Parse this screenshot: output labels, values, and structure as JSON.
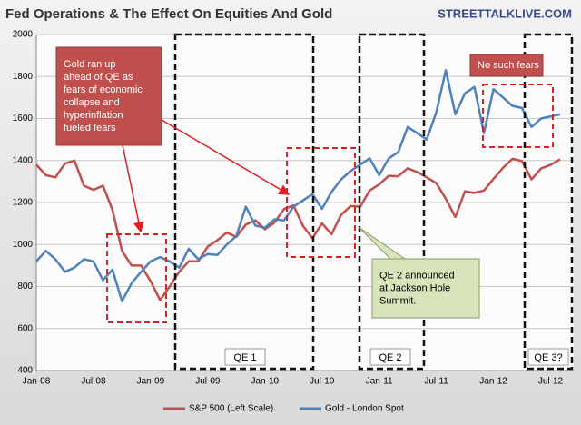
{
  "chart_data": {
    "type": "line",
    "title": "Fed Operations & The Effect On Equities And Gold",
    "source": "STREETTALKLIVE.COM",
    "categories": [
      "Jan-08",
      null,
      null,
      null,
      null,
      null,
      "Jul-08",
      null,
      null,
      null,
      null,
      null,
      "Jan-09",
      null,
      null,
      null,
      null,
      null,
      "Jul-09",
      null,
      null,
      null,
      null,
      null,
      "Jan-10",
      null,
      null,
      null,
      null,
      null,
      "Jul-10",
      null,
      null,
      null,
      null,
      null,
      "Jan-11",
      null,
      null,
      null,
      null,
      null,
      "Jul-11",
      null,
      null,
      null,
      null,
      null,
      "Jan-12",
      null,
      null,
      null,
      null,
      null,
      "Jul-12",
      null
    ],
    "series": [
      {
        "name": "S&P 500 (Left Scale)",
        "color": "#c0504d",
        "values": [
          1380,
          1330,
          1320,
          1385,
          1400,
          1280,
          1260,
          1280,
          1165,
          970,
          900,
          900,
          825,
          735,
          800,
          870,
          920,
          920,
          990,
          1020,
          1057,
          1036,
          1095,
          1115,
          1073,
          1104,
          1169,
          1186,
          1089,
          1030,
          1101,
          1049,
          1141,
          1183,
          1180,
          1257,
          1286,
          1327,
          1325,
          1363,
          1345,
          1320,
          1292,
          1218,
          1131,
          1253,
          1246,
          1257,
          1312,
          1365,
          1408,
          1397,
          1310,
          1362,
          1379,
          1406
        ]
      },
      {
        "name": "Gold - London Spot",
        "color": "#4f81bd",
        "values": [
          920,
          970,
          930,
          870,
          890,
          930,
          920,
          830,
          880,
          730,
          815,
          870,
          920,
          940,
          920,
          890,
          980,
          930,
          955,
          950,
          1000,
          1040,
          1180,
          1090,
          1080,
          1120,
          1115,
          1180,
          1210,
          1240,
          1170,
          1250,
          1310,
          1350,
          1380,
          1410,
          1330,
          1410,
          1440,
          1560,
          1530,
          1500,
          1630,
          1830,
          1620,
          1720,
          1750,
          1530,
          1740,
          1700,
          1660,
          1650,
          1560,
          1600,
          1610,
          1620
        ]
      }
    ],
    "ylim": [
      400,
      2000
    ],
    "yticks": [
      400,
      600,
      800,
      1000,
      1200,
      1400,
      1600,
      1800,
      2000
    ],
    "grid": true,
    "regions": [
      "QE 1",
      "QE 2",
      "QE 3?"
    ],
    "notes": [
      [
        "Gold ran up",
        "ahead of QE as",
        "fears of economic",
        "collapse and",
        "hyperinflation",
        "fueled fears"
      ],
      [
        "No such fears"
      ],
      [
        "QE 2 announced",
        "at Jackson Hole",
        "Summit."
      ]
    ]
  }
}
